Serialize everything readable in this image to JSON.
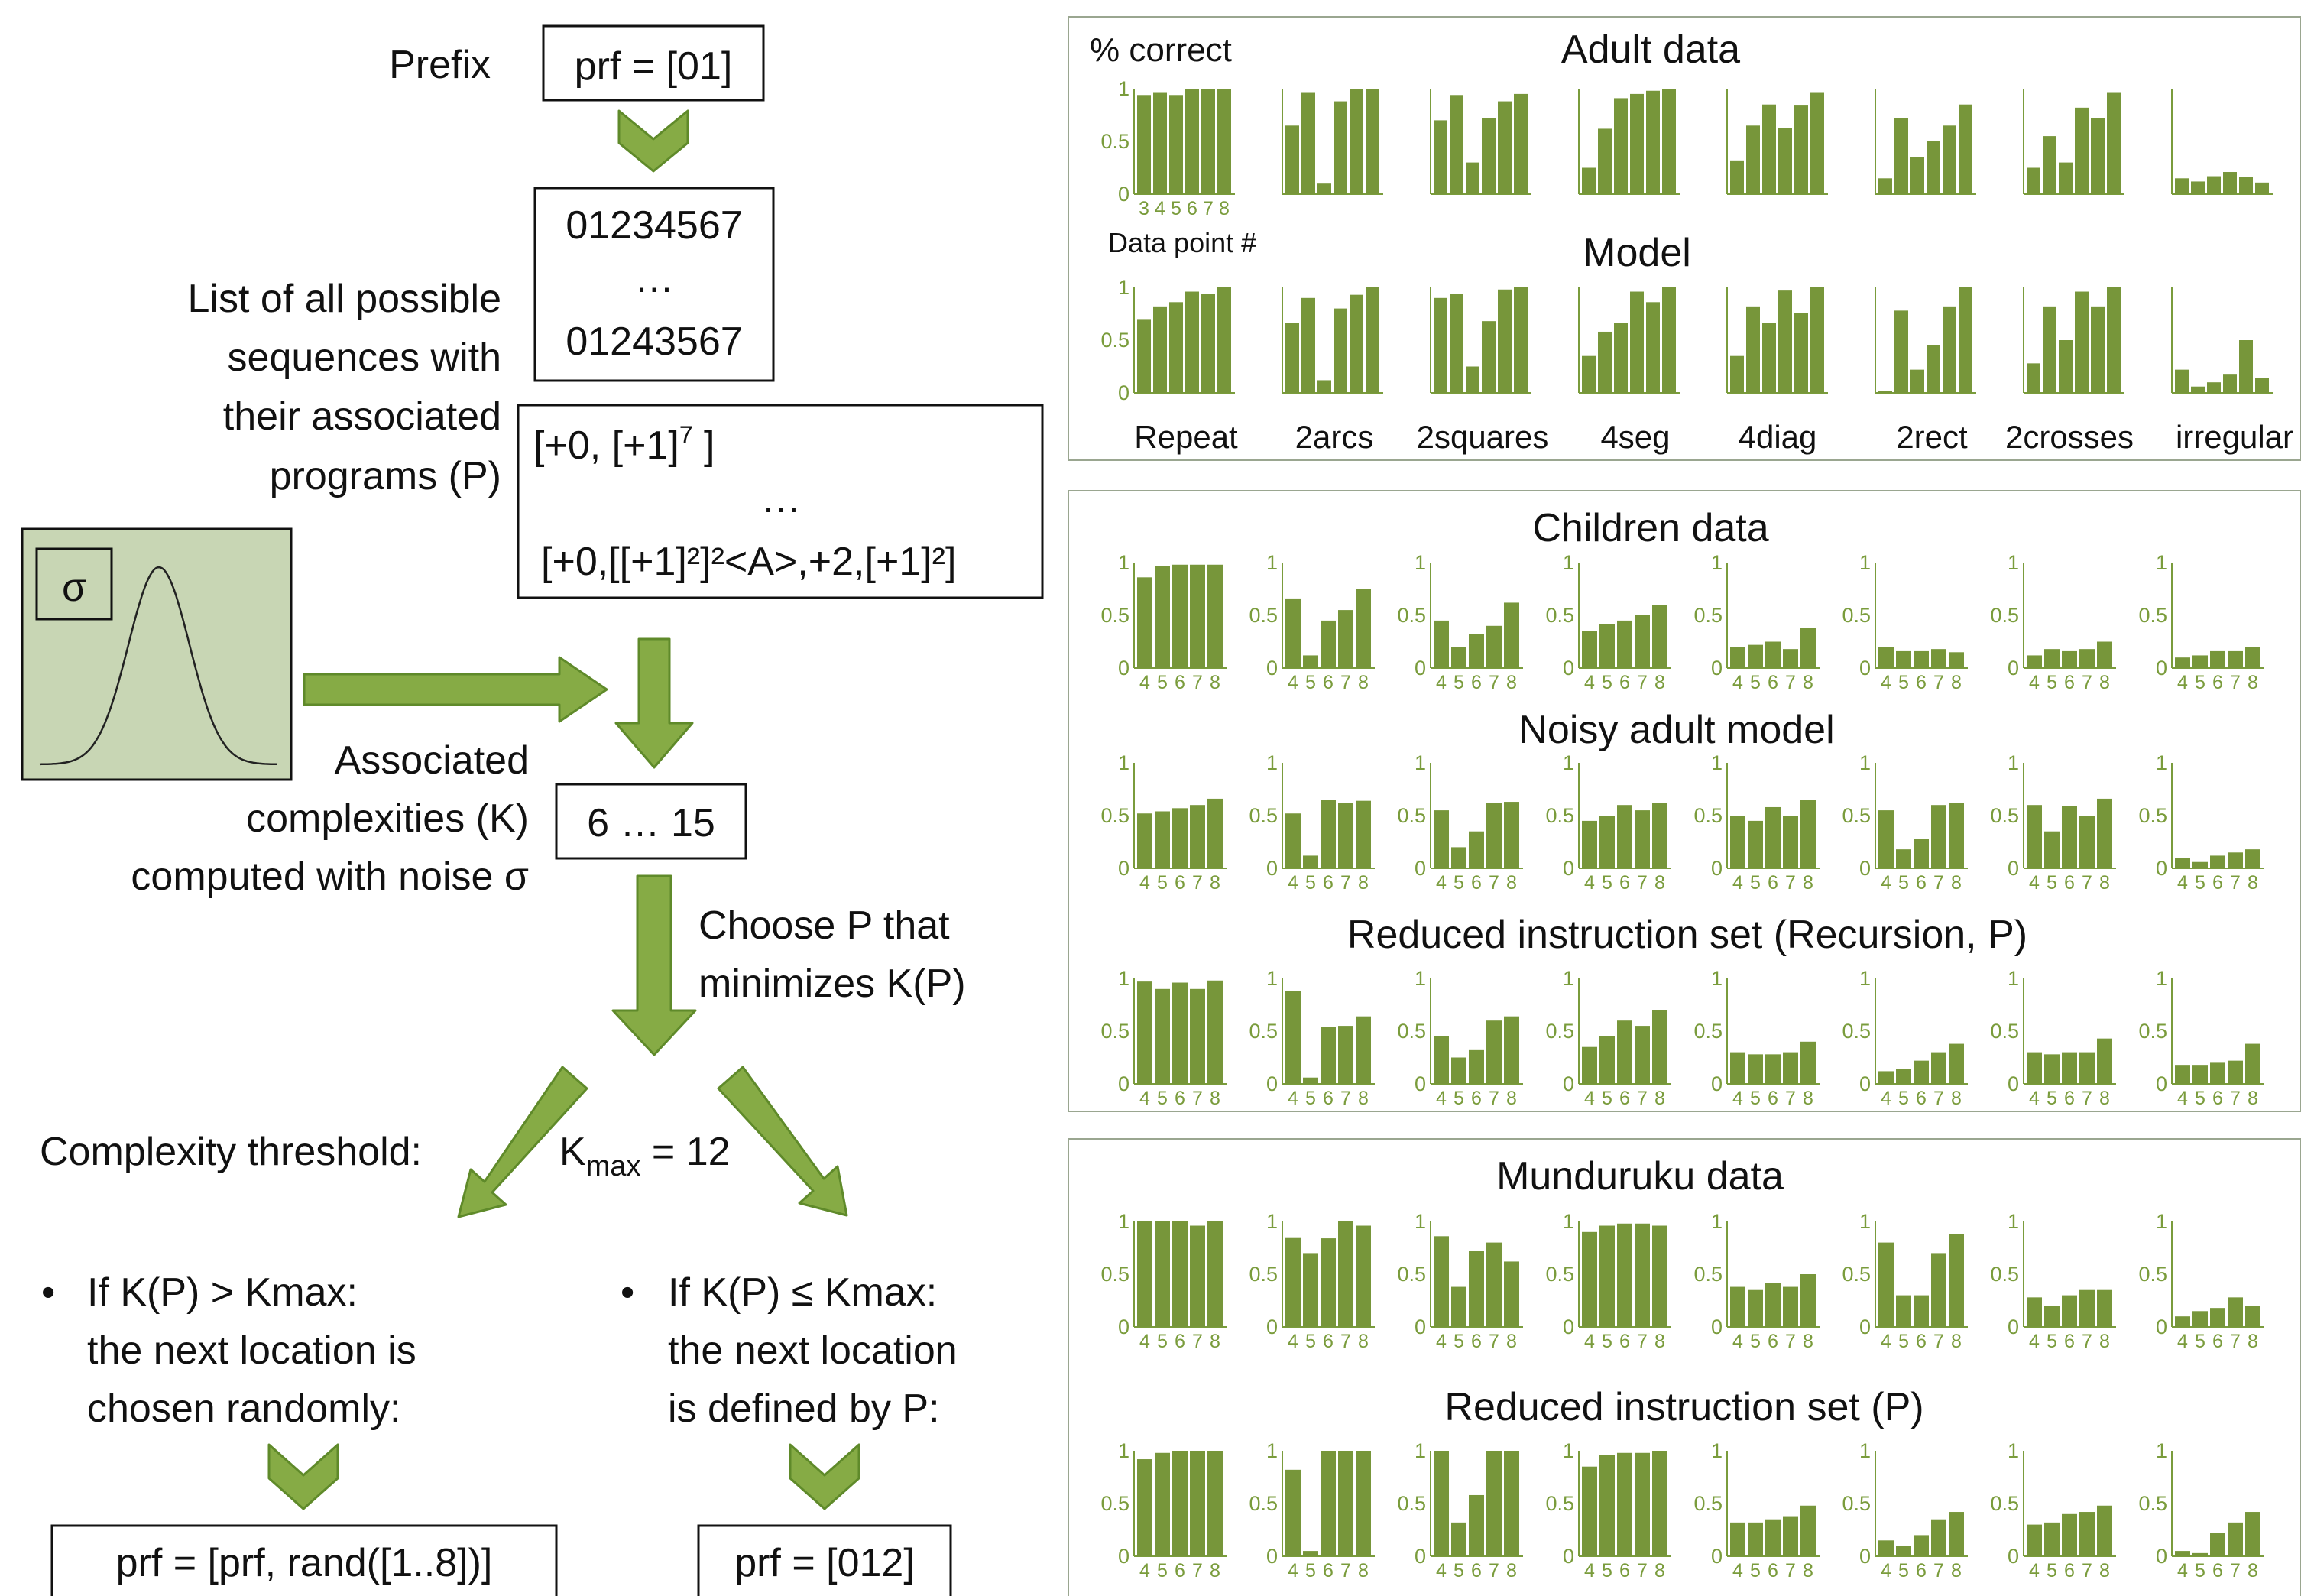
{
  "flow": {
    "prefix_label": "Prefix",
    "prefix_box": "prf = [01]",
    "seq_line1": "01234567",
    "seq_ellipsis": "…",
    "seq_line2": "01243567",
    "list_label": [
      "List of all possible",
      "sequences with",
      "their associated",
      "programs (P)"
    ],
    "prog_line1_a": "[+0, [+1]",
    "prog_line1_sup": "7",
    "prog_line1_b": " ]",
    "prog_ellipsis": "…",
    "prog_line2": "[+0,[[+1]²]²<A>,+2,[+1]²]",
    "sigma": "σ",
    "complexity_label": [
      "Associated",
      "complexities (K)",
      "computed with noise σ"
    ],
    "complexity_box": "6 … 15",
    "choose_label": [
      "Choose P that",
      "minimizes K(P)"
    ],
    "threshold_label": "Complexity threshold:",
    "kmax_k": "K",
    "kmax_sub": "max",
    "kmax_rest": " = 12",
    "bullet": "•",
    "left_branch": [
      "If K(P) > Kmax:",
      "the next location is",
      "chosen randomly:"
    ],
    "right_branch": [
      "If K(P) ≤ Kmax:",
      "the next location",
      "is defined by P:"
    ],
    "left_result": "prf = [prf, rand([1..8])]",
    "right_result": "prf = [012]"
  },
  "colors": {
    "bar": "#77963a",
    "arrow_fill": "#86ab45",
    "arrow_stroke": "#5f8a2a",
    "axis": "#7a9c3c",
    "frame": "#9aa690",
    "sigma_bg": "#c8d6b4"
  },
  "chart_data": {
    "type": "bar",
    "ylim": [
      0,
      1
    ],
    "yticks": [
      "0",
      "0.5",
      "1"
    ],
    "categories": [
      "Repeat",
      "2arcs",
      "2squares",
      "4seg",
      "4diag",
      "2rect",
      "2crosses",
      "irregular"
    ],
    "panel1": {
      "rows": [
        {
          "title": "Adult data",
          "x": [
            "3",
            "4",
            "5",
            "6",
            "7",
            "8"
          ],
          "series": [
            [
              0.94,
              0.96,
              0.94,
              1.0,
              1.0,
              1.0
            ],
            [
              0.65,
              0.96,
              0.1,
              0.88,
              1.0,
              1.0
            ],
            [
              0.7,
              0.94,
              0.3,
              0.72,
              0.88,
              0.95
            ],
            [
              0.25,
              0.62,
              0.91,
              0.95,
              0.98,
              1.0
            ],
            [
              0.32,
              0.65,
              0.85,
              0.63,
              0.84,
              0.96
            ],
            [
              0.15,
              0.72,
              0.35,
              0.5,
              0.65,
              0.85
            ],
            [
              0.25,
              0.55,
              0.3,
              0.82,
              0.72,
              0.96
            ],
            [
              0.15,
              0.12,
              0.17,
              0.21,
              0.16,
              0.11
            ]
          ]
        },
        {
          "title": "Model",
          "x": [
            "3",
            "4",
            "5",
            "6",
            "7",
            "8"
          ],
          "series": [
            [
              0.7,
              0.82,
              0.86,
              0.96,
              0.94,
              1.0
            ],
            [
              0.66,
              0.9,
              0.12,
              0.8,
              0.93,
              1.0
            ],
            [
              0.9,
              0.94,
              0.25,
              0.68,
              0.98,
              1.0
            ],
            [
              0.35,
              0.58,
              0.66,
              0.96,
              0.86,
              1.0
            ],
            [
              0.35,
              0.82,
              0.66,
              0.97,
              0.76,
              1.0
            ],
            [
              0.02,
              0.78,
              0.22,
              0.45,
              0.82,
              1.0
            ],
            [
              0.28,
              0.82,
              0.5,
              0.96,
              0.82,
              1.0
            ],
            [
              0.22,
              0.06,
              0.1,
              0.18,
              0.5,
              0.14
            ]
          ]
        }
      ]
    },
    "panel2": {
      "rows": [
        {
          "title": "Children data",
          "x": [
            "4",
            "5",
            "6",
            "7",
            "8"
          ],
          "series": [
            [
              0.86,
              0.97,
              0.98,
              0.98,
              0.98
            ],
            [
              0.66,
              0.12,
              0.45,
              0.55,
              0.75
            ],
            [
              0.45,
              0.2,
              0.32,
              0.4,
              0.62
            ],
            [
              0.35,
              0.42,
              0.45,
              0.5,
              0.6
            ],
            [
              0.2,
              0.22,
              0.25,
              0.18,
              0.38
            ],
            [
              0.2,
              0.16,
              0.16,
              0.18,
              0.15
            ],
            [
              0.12,
              0.18,
              0.16,
              0.18,
              0.25
            ],
            [
              0.1,
              0.12,
              0.16,
              0.16,
              0.2
            ]
          ]
        },
        {
          "title": "Noisy adult model",
          "x": [
            "4",
            "5",
            "6",
            "7",
            "8"
          ],
          "series": [
            [
              0.52,
              0.54,
              0.57,
              0.6,
              0.66
            ],
            [
              0.52,
              0.12,
              0.65,
              0.62,
              0.64
            ],
            [
              0.55,
              0.2,
              0.35,
              0.62,
              0.63
            ],
            [
              0.45,
              0.5,
              0.6,
              0.55,
              0.62
            ],
            [
              0.5,
              0.45,
              0.58,
              0.5,
              0.65
            ],
            [
              0.55,
              0.18,
              0.28,
              0.6,
              0.62
            ],
            [
              0.6,
              0.35,
              0.59,
              0.5,
              0.66
            ],
            [
              0.1,
              0.06,
              0.12,
              0.15,
              0.18
            ]
          ]
        },
        {
          "title": "Reduced instruction set (Recursion, P)",
          "x": [
            "4",
            "5",
            "6",
            "7",
            "8"
          ],
          "series": [
            [
              0.97,
              0.9,
              0.96,
              0.9,
              0.98
            ],
            [
              0.88,
              0.06,
              0.54,
              0.55,
              0.64
            ],
            [
              0.45,
              0.25,
              0.32,
              0.6,
              0.64
            ],
            [
              0.35,
              0.45,
              0.6,
              0.55,
              0.7
            ],
            [
              0.3,
              0.28,
              0.28,
              0.3,
              0.4
            ],
            [
              0.12,
              0.14,
              0.22,
              0.3,
              0.38
            ],
            [
              0.3,
              0.28,
              0.3,
              0.3,
              0.43
            ],
            [
              0.18,
              0.18,
              0.2,
              0.22,
              0.38
            ]
          ]
        }
      ]
    },
    "panel3": {
      "rows": [
        {
          "title": "Munduruku data",
          "x": [
            "4",
            "5",
            "6",
            "7",
            "8"
          ],
          "series": [
            [
              1.0,
              1.0,
              1.0,
              0.96,
              1.0
            ],
            [
              0.85,
              0.7,
              0.84,
              1.0,
              0.96
            ],
            [
              0.86,
              0.38,
              0.72,
              0.8,
              0.62
            ],
            [
              0.9,
              0.96,
              0.98,
              0.98,
              0.96
            ],
            [
              0.38,
              0.35,
              0.42,
              0.38,
              0.5
            ],
            [
              0.8,
              0.3,
              0.3,
              0.7,
              0.88
            ],
            [
              0.28,
              0.2,
              0.3,
              0.35,
              0.35
            ],
            [
              0.1,
              0.15,
              0.18,
              0.28,
              0.2
            ]
          ]
        },
        {
          "title": "Reduced instruction set (P)",
          "x": [
            "4",
            "5",
            "6",
            "7",
            "8"
          ],
          "series": [
            [
              0.92,
              0.98,
              1.0,
              1.0,
              1.0
            ],
            [
              0.82,
              0.05,
              1.0,
              1.0,
              1.0
            ],
            [
              1.0,
              0.32,
              0.58,
              1.0,
              1.0
            ],
            [
              0.85,
              0.96,
              0.98,
              0.98,
              1.0
            ],
            [
              0.32,
              0.32,
              0.35,
              0.38,
              0.48
            ],
            [
              0.15,
              0.1,
              0.2,
              0.35,
              0.42
            ],
            [
              0.3,
              0.32,
              0.4,
              0.42,
              0.48
            ],
            [
              0.05,
              0.03,
              0.22,
              0.32,
              0.42
            ]
          ]
        }
      ]
    },
    "labels": {
      "ylabel": "% correct",
      "xlabel": "Data point #"
    }
  }
}
